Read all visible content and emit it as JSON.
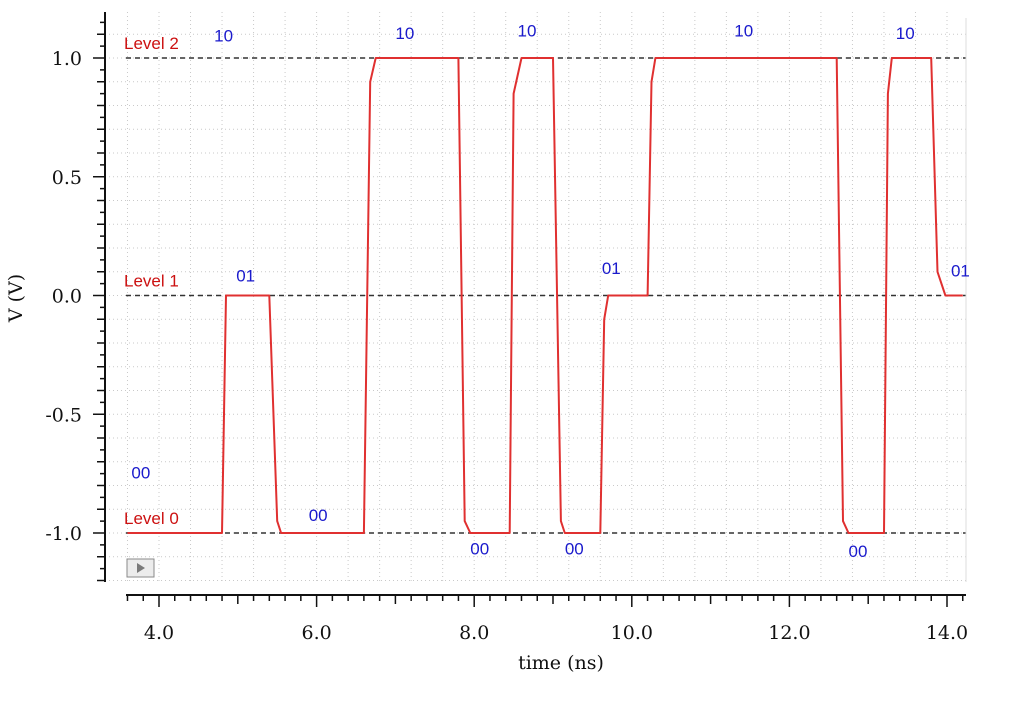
{
  "chart_data": {
    "type": "line",
    "xlabel": "time (ns)",
    "ylabel": "V (V)",
    "xlim": [
      3.6,
      14.2
    ],
    "ylim": [
      -1.2,
      1.2
    ],
    "x_ticks": [
      "4.0",
      "6.0",
      "8.0",
      "10.0",
      "12.0",
      "14.0"
    ],
    "y_ticks": [
      "1.0",
      "0.5",
      "0.0",
      "-0.5",
      "-1.0"
    ],
    "grid": true,
    "colors": {
      "signal": "#e03030",
      "reference": "#333333",
      "level_text": "#cc1111",
      "code_text": "#1a1acc"
    },
    "reference_levels": [
      {
        "label": "Level 2",
        "y": 1.0
      },
      {
        "label": "Level 1",
        "y": 0.0
      },
      {
        "label": "Level 0",
        "y": -1.0
      }
    ],
    "series": [
      {
        "x": [
          3.6,
          4.8,
          4.85,
          4.9,
          5.4,
          5.5,
          5.55,
          6.6,
          6.68,
          6.75,
          7.8,
          7.88,
          7.95,
          8.45,
          8.5,
          8.6,
          9.0,
          9.1,
          9.15,
          9.6,
          9.65,
          9.7,
          10.2,
          10.25,
          10.3,
          12.6,
          12.68,
          12.75,
          13.2,
          13.25,
          13.3,
          13.8,
          13.88,
          13.98,
          14.2
        ],
        "y": [
          -1.0,
          -1.0,
          0.0,
          0.0,
          0.0,
          -0.95,
          -1.0,
          -1.0,
          0.9,
          1.0,
          1.0,
          -0.95,
          -1.0,
          -1.0,
          0.85,
          1.0,
          1.0,
          -0.95,
          -1.0,
          -1.0,
          -0.1,
          0.0,
          0.0,
          0.9,
          1.0,
          1.0,
          -0.95,
          -1.0,
          -1.0,
          0.85,
          1.0,
          1.0,
          0.1,
          0.0,
          0.0
        ]
      }
    ],
    "annotations": [
      {
        "text": "10",
        "x": 4.7,
        "y": 1.07
      },
      {
        "text": "10",
        "x": 7.0,
        "y": 1.08
      },
      {
        "text": "10",
        "x": 8.55,
        "y": 1.09
      },
      {
        "text": "10",
        "x": 11.3,
        "y": 1.09
      },
      {
        "text": "10",
        "x": 13.35,
        "y": 1.08
      },
      {
        "text": "01",
        "x": 4.98,
        "y": 0.06
      },
      {
        "text": "01",
        "x": 9.62,
        "y": 0.09
      },
      {
        "text": "01",
        "x": 14.05,
        "y": 0.08
      },
      {
        "text": "00",
        "x": 3.65,
        "y": -0.77
      },
      {
        "text": "00",
        "x": 5.9,
        "y": -0.95
      },
      {
        "text": "00",
        "x": 7.95,
        "y": -1.09
      },
      {
        "text": "00",
        "x": 9.15,
        "y": -1.09
      },
      {
        "text": "00",
        "x": 12.75,
        "y": -1.1
      }
    ]
  }
}
